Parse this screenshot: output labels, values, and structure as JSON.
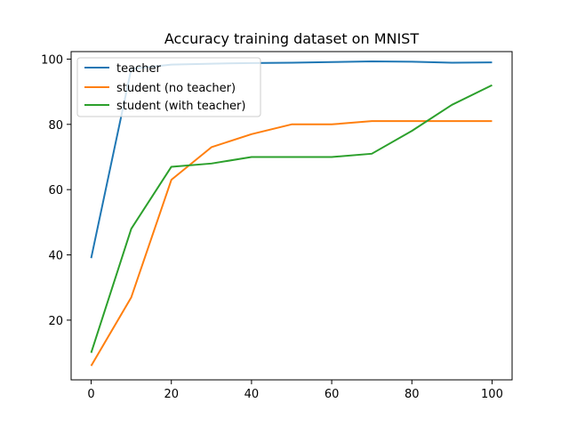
{
  "chart_data": {
    "type": "line",
    "title": "Accuracy training dataset on MNIST",
    "xlabel": "",
    "ylabel": "",
    "x": [
      0,
      10,
      20,
      30,
      40,
      50,
      60,
      70,
      80,
      90,
      100
    ],
    "xlim": [
      -5,
      105
    ],
    "ylim": [
      1.7,
      102.3
    ],
    "xticks": [
      0,
      20,
      40,
      60,
      80,
      100
    ],
    "yticks": [
      20,
      40,
      60,
      80,
      100
    ],
    "grid": false,
    "legend_position": "top-left",
    "series": [
      {
        "name": "teacher",
        "color": "#1f77b4",
        "values": [
          39,
          97,
          98.3,
          98.6,
          98.8,
          98.9,
          99.1,
          99.3,
          99.2,
          98.9,
          99.0
        ]
      },
      {
        "name": "student (no teacher)",
        "color": "#ff7f0e",
        "values": [
          6,
          27,
          63,
          73,
          77,
          80,
          80,
          81,
          81,
          81,
          81
        ]
      },
      {
        "name": "student (with teacher)",
        "color": "#2ca02c",
        "values": [
          10,
          48,
          67,
          68,
          70,
          70,
          70,
          71,
          78,
          86,
          92
        ]
      }
    ]
  }
}
